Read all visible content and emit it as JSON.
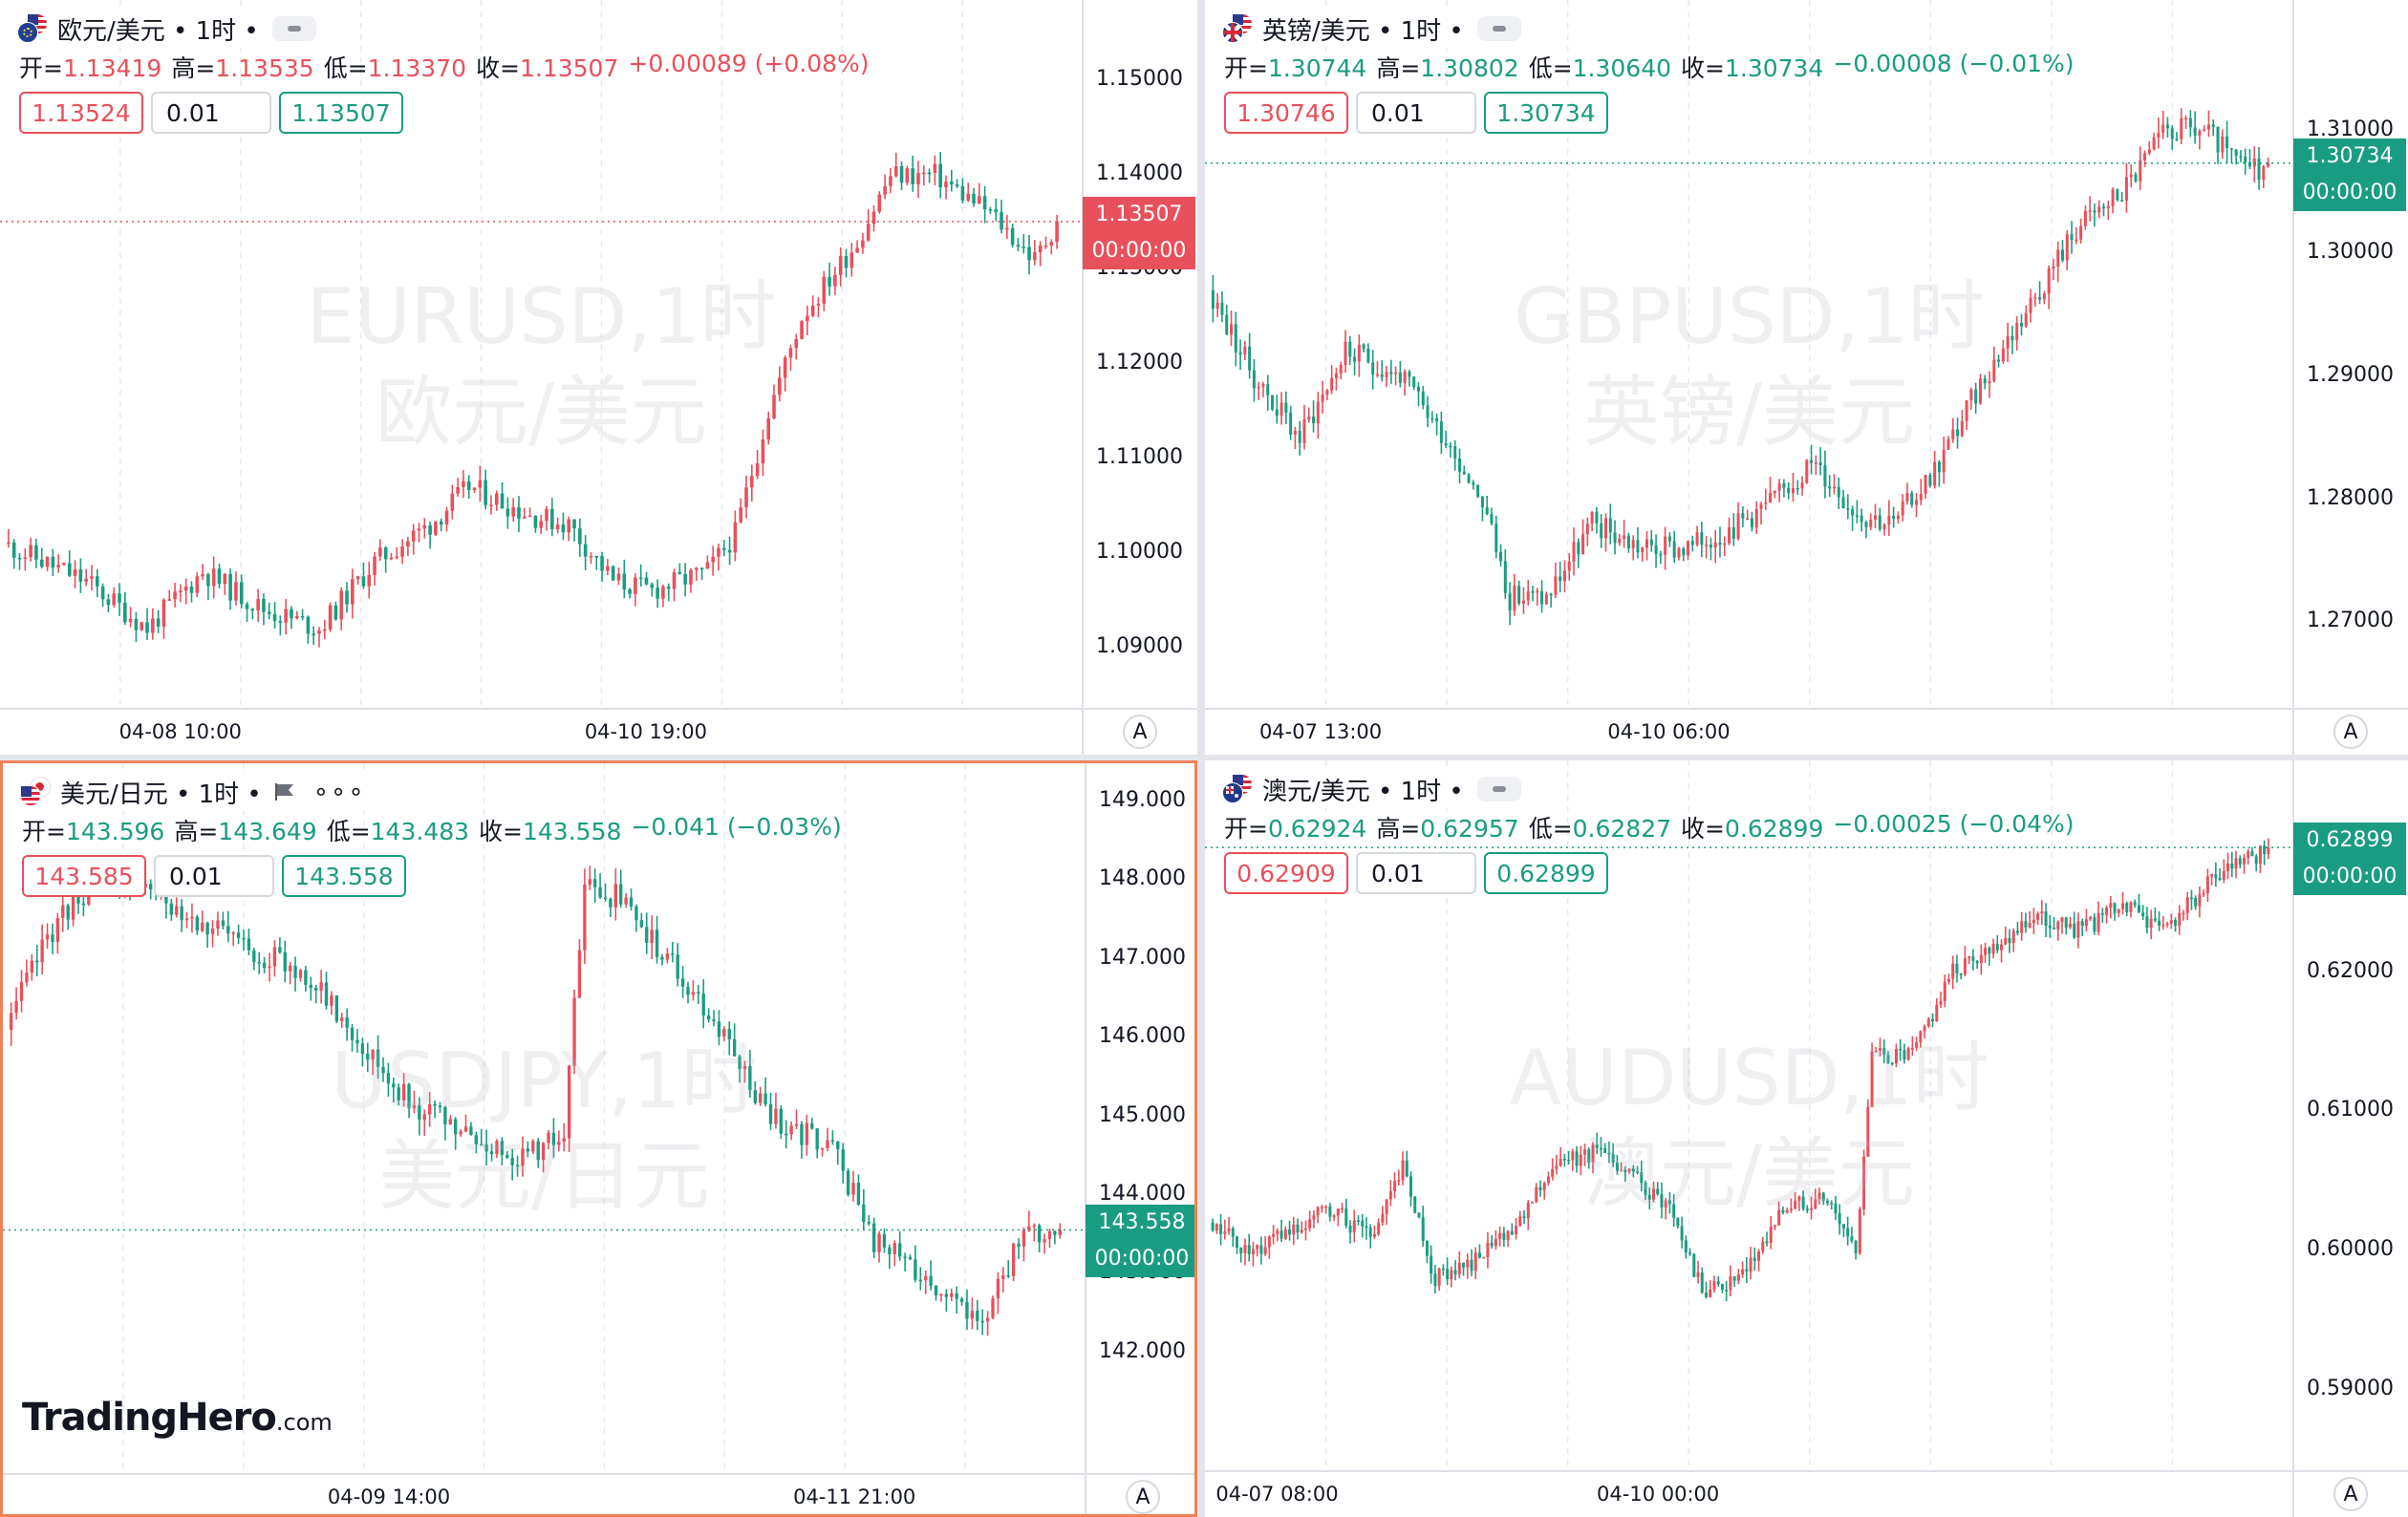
{
  "colors": {
    "up": "#e8505b",
    "down": "#1a9c82",
    "grid": "#e7e9ee",
    "axis_border": "#dcdfe5"
  },
  "panels": [
    {
      "id": "eurusd",
      "title": "欧元/美元 • 1时 •",
      "flag_icons": [
        "eu-flag-icon",
        "us-flag-icon"
      ],
      "ohlc": {
        "open_label": "开=",
        "open": "1.13419",
        "high_label": "高=",
        "high": "1.13535",
        "low_label": "低=",
        "low": "1.13370",
        "close_label": "收=",
        "close": "1.13507",
        "change": "+0.00089 (+0.08%)"
      },
      "ohlc_color": "up",
      "sell": "1.13524",
      "qty": "0.01",
      "buy": "1.13507",
      "watermark_symbol": "EURUSD,1时",
      "watermark_name": "欧元/美元",
      "price_ticks": [
        "1.15000",
        "1.14000",
        "1.13000",
        "1.12000",
        "1.11000",
        "1.10000",
        "1.09000"
      ],
      "price_tick_values": [
        1.15,
        1.14,
        1.13,
        1.12,
        1.11,
        1.1,
        1.09
      ],
      "price_range": [
        1.0855,
        1.1545
      ],
      "current_price": "1.13507",
      "current_value": 1.13507,
      "countdown": "00:00:00",
      "current_color": "up",
      "time_ticks": [
        "04-08 10:00",
        "04-10 19:00"
      ],
      "series": {
        "anchors": [
          [
            0,
            1.101
          ],
          [
            15,
            1.097
          ],
          [
            26,
            1.092
          ],
          [
            36,
            1.098
          ],
          [
            47,
            1.094
          ],
          [
            57,
            1.092
          ],
          [
            67,
            1.099
          ],
          [
            77,
            1.103
          ],
          [
            84,
            1.107
          ],
          [
            95,
            1.104
          ],
          [
            102,
            1.103
          ],
          [
            110,
            1.097
          ],
          [
            117,
            1.096
          ],
          [
            127,
            1.098
          ],
          [
            132,
            1.102
          ],
          [
            138,
            1.115
          ],
          [
            144,
            1.125
          ],
          [
            154,
            1.133
          ],
          [
            160,
            1.14
          ],
          [
            168,
            1.14
          ],
          [
            178,
            1.136
          ],
          [
            186,
            1.131
          ],
          [
            190,
            1.135
          ]
        ],
        "candles": 190,
        "volatility": 0.0028,
        "seed": 11
      },
      "last_close": 1.13507,
      "active": false,
      "show_a": true
    },
    {
      "id": "gbpusd",
      "title": "英镑/美元 • 1时 •",
      "flag_icons": [
        "uk-flag-icon",
        "us-flag-icon"
      ],
      "ohlc": {
        "open_label": "开=",
        "open": "1.30744",
        "high_label": "高=",
        "high": "1.30802",
        "low_label": "低=",
        "low": "1.30640",
        "close_label": "收=",
        "close": "1.30734",
        "change": "−0.00008 (−0.01%)"
      },
      "ohlc_color": "down",
      "sell": "1.30746",
      "qty": "0.01",
      "buy": "1.30734",
      "watermark_symbol": "GBPUSD,1时",
      "watermark_name": "英镑/美元",
      "price_ticks": [
        "1.31000",
        "1.30000",
        "1.29000",
        "1.28000",
        "1.27000"
      ],
      "price_tick_values": [
        1.31,
        1.3,
        1.29,
        1.28,
        1.27
      ],
      "price_range": [
        1.2645,
        1.3175
      ],
      "current_price": "1.30734",
      "current_value": 1.30734,
      "countdown": "00:00:00",
      "current_color": "down",
      "time_ticks": [
        "04-07 13:00",
        "04-10 06:00"
      ],
      "series": {
        "anchors": [
          [
            0,
            1.297
          ],
          [
            10,
            1.29
          ],
          [
            20,
            1.285
          ],
          [
            30,
            1.292
          ],
          [
            42,
            1.29
          ],
          [
            52,
            1.285
          ],
          [
            60,
            1.28
          ],
          [
            66,
            1.272
          ],
          [
            74,
            1.272
          ],
          [
            84,
            1.278
          ],
          [
            95,
            1.276
          ],
          [
            105,
            1.276
          ],
          [
            116,
            1.278
          ],
          [
            124,
            1.28
          ],
          [
            132,
            1.283
          ],
          [
            142,
            1.279
          ],
          [
            150,
            1.278
          ],
          [
            160,
            1.283
          ],
          [
            170,
            1.29
          ],
          [
            180,
            1.296
          ],
          [
            190,
            1.302
          ],
          [
            200,
            1.305
          ],
          [
            210,
            1.31
          ],
          [
            218,
            1.31
          ],
          [
            226,
            1.307
          ],
          [
            232,
            1.307
          ]
        ],
        "candles": 232,
        "volatility": 0.0024,
        "seed": 23
      },
      "last_close": 1.30734,
      "active": false,
      "show_a": true
    },
    {
      "id": "usdjpy",
      "title": "美元/日元 • 1时 •",
      "flag_icons": [
        "us-flag-icon",
        "jp-flag-icon"
      ],
      "ohlc": {
        "open_label": "开=",
        "open": "143.596",
        "high_label": "高=",
        "high": "143.649",
        "low_label": "低=",
        "low": "143.483",
        "close_label": "收=",
        "close": "143.558",
        "change": "−0.041 (−0.03%)"
      },
      "ohlc_color": "down",
      "sell": "143.585",
      "qty": "0.01",
      "buy": "143.558",
      "watermark_symbol": "USDJPY,1时",
      "watermark_name": "美元/日元",
      "price_ticks": [
        "149.000",
        "148.000",
        "147.000",
        "146.000",
        "145.000",
        "144.000",
        "143.000",
        "142.000"
      ],
      "price_tick_values": [
        149,
        148,
        147,
        146,
        145,
        144,
        143,
        142
      ],
      "price_range": [
        140.7,
        149.0
      ],
      "current_price": "143.558",
      "current_value": 143.558,
      "countdown": "00:00:00",
      "current_color": "down",
      "time_ticks": [
        "04-09 14:00",
        "04-11 21:00"
      ],
      "series": {
        "anchors": [
          [
            0,
            146.1
          ],
          [
            8,
            147.3
          ],
          [
            18,
            148.1
          ],
          [
            30,
            147.8
          ],
          [
            45,
            147.2
          ],
          [
            58,
            146.8
          ],
          [
            68,
            146.0
          ],
          [
            78,
            145.2
          ],
          [
            90,
            144.7
          ],
          [
            100,
            144.5
          ],
          [
            108,
            144.8
          ],
          [
            112,
            147.9
          ],
          [
            118,
            147.8
          ],
          [
            128,
            147.0
          ],
          [
            138,
            146.1
          ],
          [
            148,
            145.0
          ],
          [
            160,
            144.6
          ],
          [
            168,
            143.4
          ],
          [
            178,
            143.0
          ],
          [
            188,
            142.3
          ],
          [
            196,
            143.4
          ],
          [
            204,
            143.6
          ]
        ],
        "candles": 204,
        "volatility": 0.38,
        "seed": 37
      },
      "last_close": 143.558,
      "active": true,
      "show_a": true,
      "logo_brand": "TradingHero",
      "logo_suffix": ".com"
    },
    {
      "id": "audusd",
      "title": "澳元/美元 • 1时 •",
      "flag_icons": [
        "au-flag-icon",
        "us-flag-icon"
      ],
      "ohlc": {
        "open_label": "开=",
        "open": "0.62924",
        "high_label": "高=",
        "high": "0.62957",
        "low_label": "低=",
        "low": "0.62827",
        "close_label": "收=",
        "close": "0.62899",
        "change": "−0.00025 (−0.04%)"
      },
      "ohlc_color": "down",
      "sell": "0.62909",
      "qty": "0.01",
      "buy": "0.62899",
      "watermark_symbol": "AUDUSD,1时",
      "watermark_name": "澳元/美元",
      "price_ticks": [
        "0.62000",
        "0.61000",
        "0.60000",
        "0.59000"
      ],
      "price_tick_values": [
        0.62,
        0.61,
        0.6,
        0.59
      ],
      "price_range": [
        0.5855,
        0.6325
      ],
      "current_price": "0.62899",
      "current_value": 0.62899,
      "countdown": "00:00:00",
      "current_color": "down",
      "time_ticks": [
        "04-07 08:00",
        "04-10 00:00"
      ],
      "series": {
        "anchors": [
          [
            0,
            0.602
          ],
          [
            10,
            0.6
          ],
          [
            20,
            0.601
          ],
          [
            30,
            0.603
          ],
          [
            40,
            0.601
          ],
          [
            48,
            0.606
          ],
          [
            56,
            0.598
          ],
          [
            64,
            0.599
          ],
          [
            74,
            0.601
          ],
          [
            84,
            0.606
          ],
          [
            96,
            0.607
          ],
          [
            106,
            0.605
          ],
          [
            114,
            0.603
          ],
          [
            122,
            0.597
          ],
          [
            132,
            0.598
          ],
          [
            142,
            0.603
          ],
          [
            152,
            0.604
          ],
          [
            160,
            0.6
          ],
          [
            164,
            0.614
          ],
          [
            174,
            0.614
          ],
          [
            184,
            0.62
          ],
          [
            194,
            0.622
          ],
          [
            204,
            0.624
          ],
          [
            216,
            0.623
          ],
          [
            226,
            0.625
          ],
          [
            236,
            0.623
          ],
          [
            246,
            0.626
          ],
          [
            256,
            0.628
          ],
          [
            262,
            0.629
          ]
        ],
        "candles": 262,
        "volatility": 0.0016,
        "seed": 51
      },
      "last_close": 0.62899,
      "active": false,
      "show_a": true
    }
  ]
}
